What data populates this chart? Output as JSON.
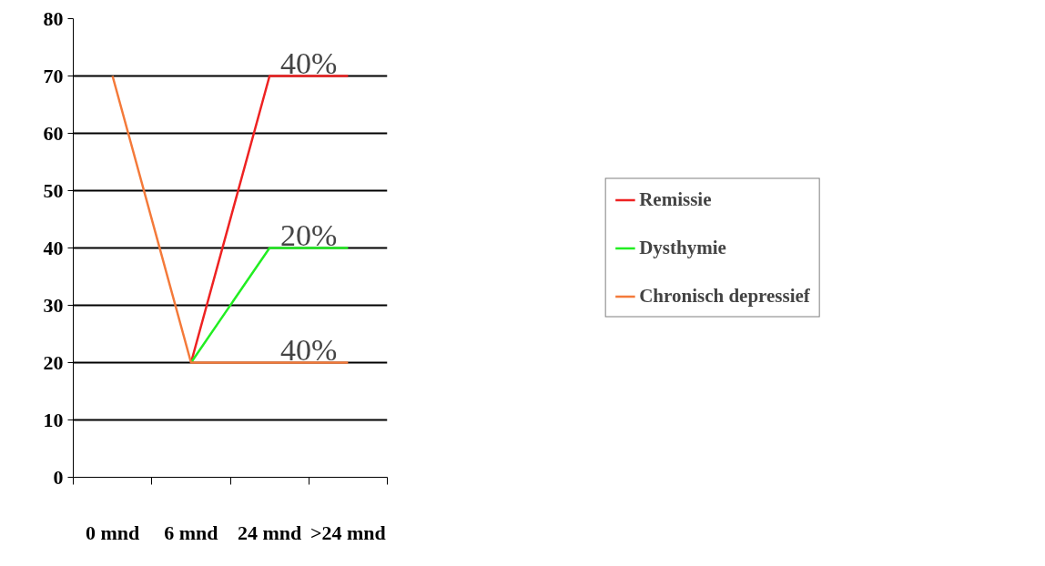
{
  "chart_data": {
    "type": "line",
    "categories": [
      "0 mnd",
      "6 mnd",
      "24 mnd",
      ">24 mnd"
    ],
    "series": [
      {
        "name": "Remissie",
        "color": "#ee2222",
        "values": [
          null,
          20,
          70,
          70
        ]
      },
      {
        "name": "Dysthymie",
        "color": "#22ee22",
        "values": [
          null,
          20,
          40,
          40
        ]
      },
      {
        "name": "Chronisch depressief",
        "color": "#f47a3a",
        "values": [
          70,
          20,
          20,
          20
        ]
      }
    ],
    "annotations": [
      {
        "text": "40%",
        "x": ">24 mnd",
        "y": 70
      },
      {
        "text": "20%",
        "x": ">24 mnd",
        "y": 40
      },
      {
        "text": "40%",
        "x": ">24 mnd",
        "y": 20
      }
    ],
    "ylim": [
      0,
      80
    ],
    "yticks": [
      0,
      10,
      20,
      30,
      40,
      50,
      60,
      70,
      80
    ],
    "grid": "y",
    "legend": "right",
    "marker": "none",
    "line_style": "solid"
  }
}
